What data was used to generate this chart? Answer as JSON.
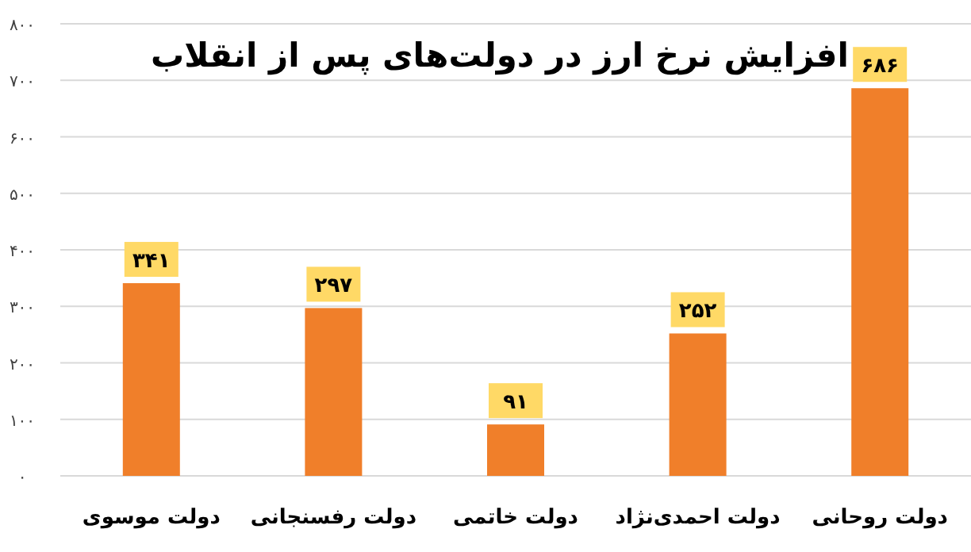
{
  "chart_data": {
    "type": "bar",
    "title": "افزایش نرخ ارز در دولت‌های پس از انقلاب",
    "categories": [
      "دولت موسوی",
      "دولت رفسنجانی",
      "دولت خاتمی",
      "دولت احمدی‌نژاد",
      "دولت روحانی"
    ],
    "values": [
      341,
      297,
      91,
      252,
      686
    ],
    "value_labels": [
      "۳۴۱",
      "۲۹۷",
      "۹۱",
      "۲۵۲",
      "۶۸۶"
    ],
    "color": "#f07f2a",
    "ylim": [
      0,
      800
    ],
    "yticks": [
      {
        "value": 0,
        "label": "۰"
      },
      {
        "value": 100,
        "label": "۱۰۰"
      },
      {
        "value": 200,
        "label": "۲۰۰"
      },
      {
        "value": 300,
        "label": "۳۰۰"
      },
      {
        "value": 400,
        "label": "۴۰۰"
      },
      {
        "value": 500,
        "label": "۵۰۰"
      },
      {
        "value": 600,
        "label": "۶۰۰"
      },
      {
        "value": 700,
        "label": "۷۰۰"
      },
      {
        "value": 800,
        "label": "۸۰۰"
      }
    ],
    "grid": "y"
  }
}
